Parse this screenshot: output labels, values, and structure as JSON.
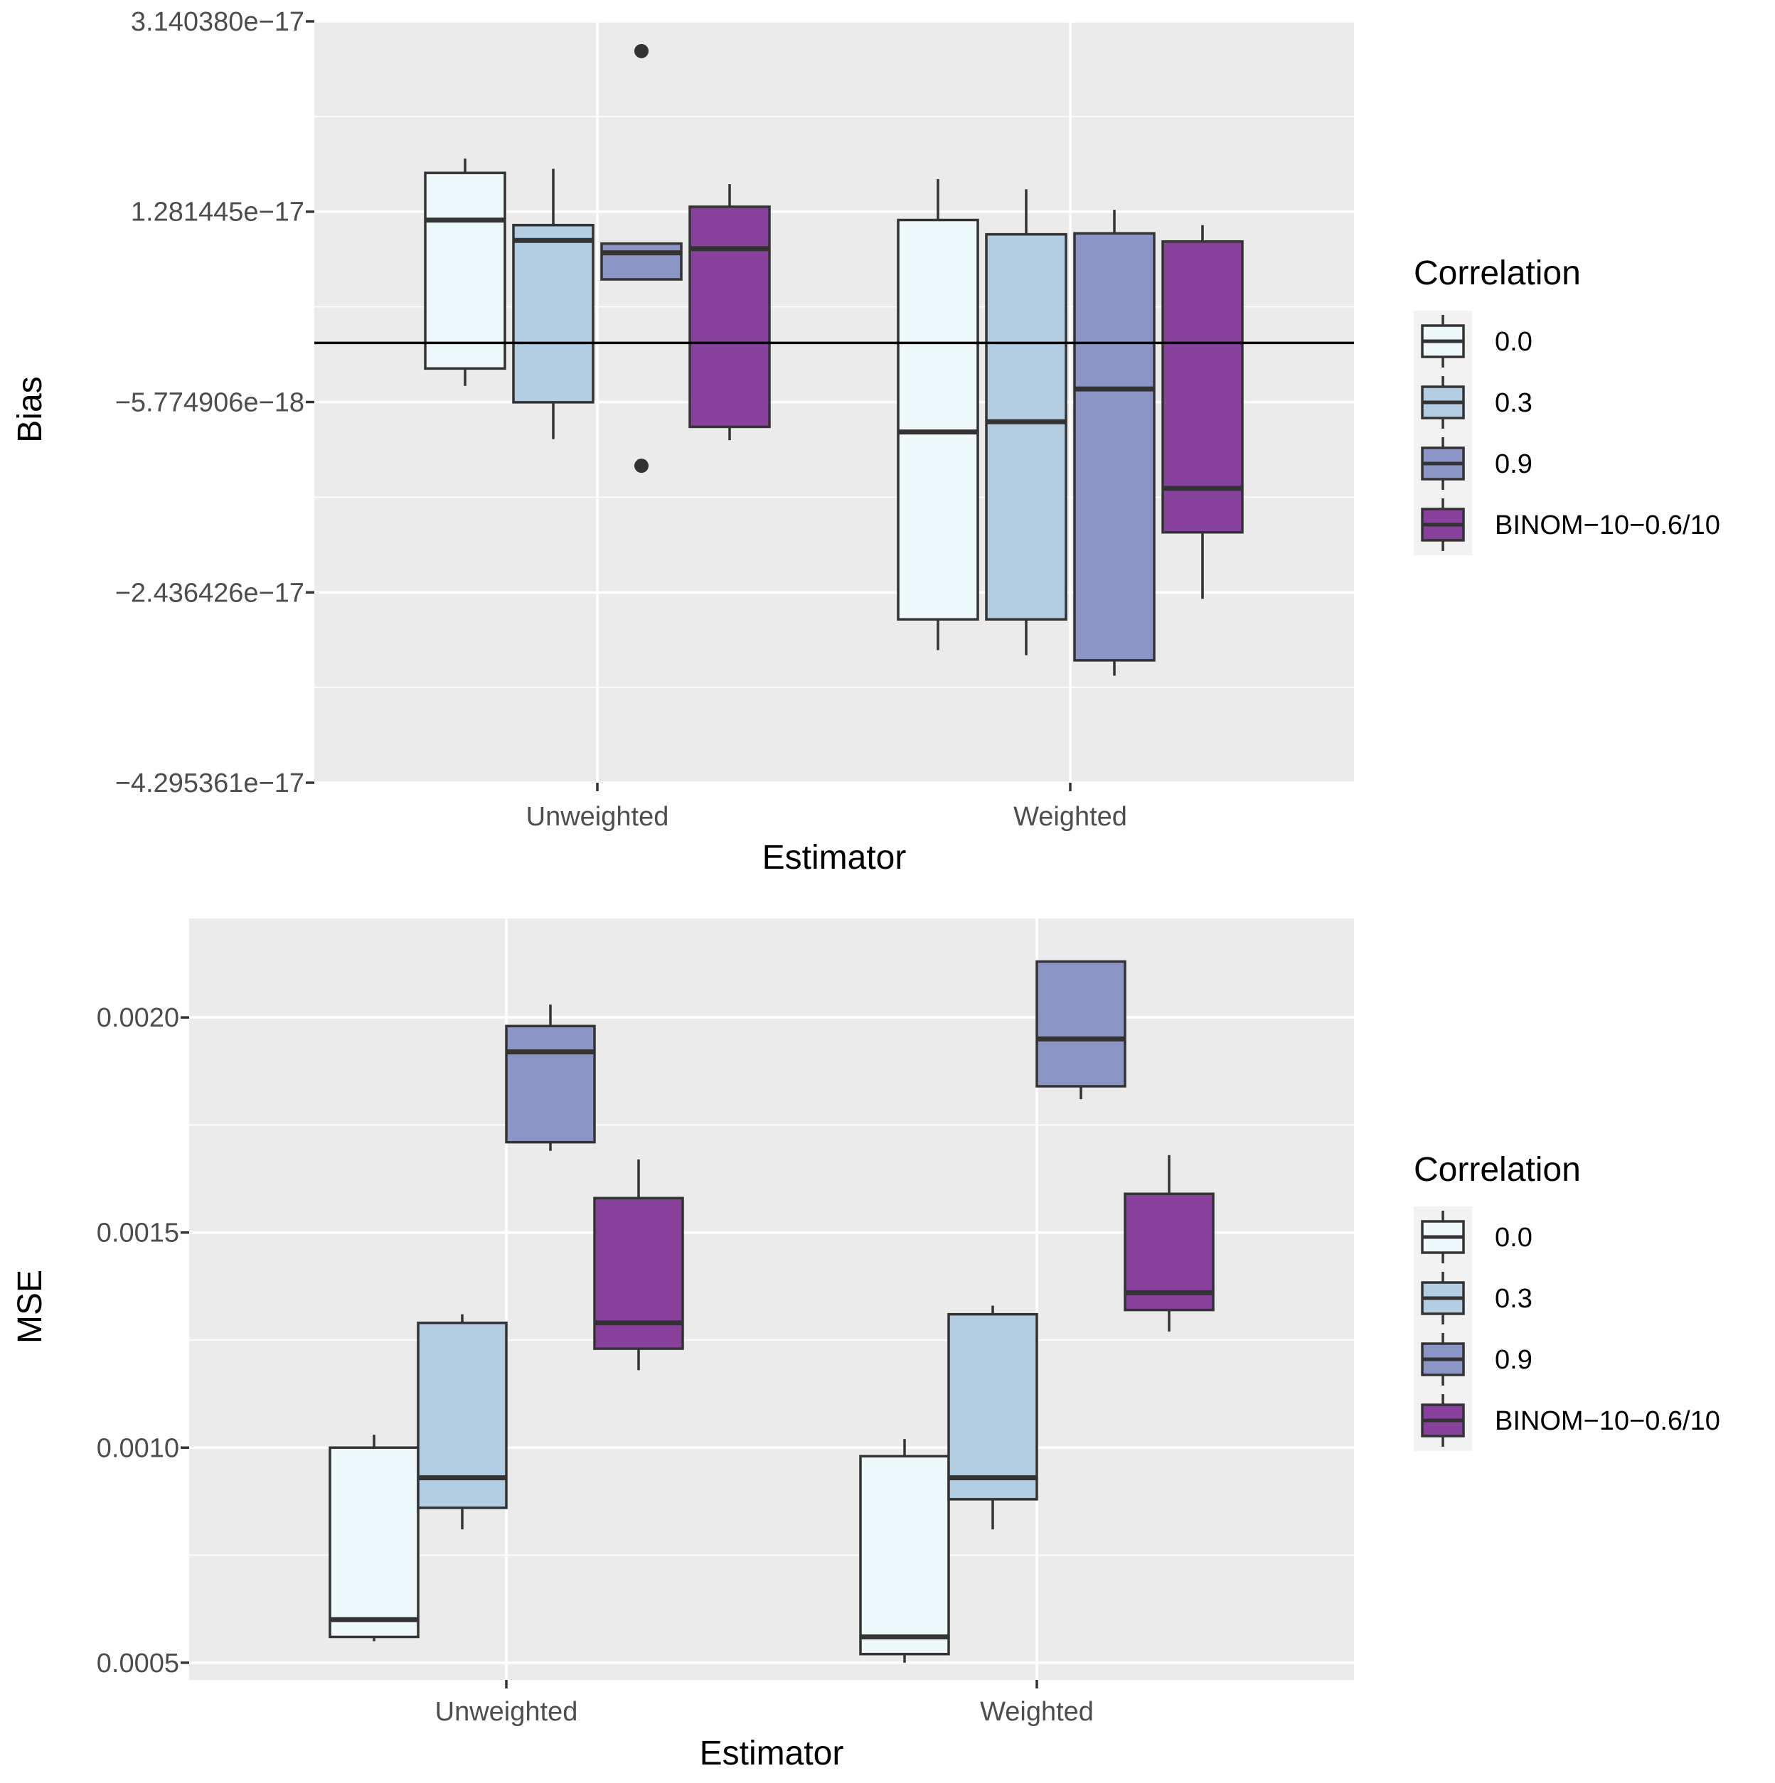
{
  "chart_data": [
    {
      "type": "boxplot",
      "ylabel": "Bias",
      "xlabel": "Estimator",
      "categories": [
        "Unweighted",
        "Weighted"
      ],
      "ylim": [
        -4.295361e-17,
        3.14038e-17
      ],
      "yticks": [
        3.14038e-17,
        1.281445e-17,
        -5.774906e-18,
        -2.436426e-17,
        -4.295361e-17
      ],
      "ytick_labels": [
        "3.140380e−17",
        "1.281445e−17",
        "−5.774906e−18",
        "−2.436426e−17",
        "−4.295361e−17"
      ],
      "hline": 0,
      "legend": {
        "title": "Correlation",
        "entries": [
          "0.0",
          "0.3",
          "0.9",
          "BINOM−10−0.6/10"
        ],
        "colors": [
          "#edf8fb",
          "#b3cde3",
          "#8c96c6",
          "#88419d"
        ]
      },
      "series": [
        {
          "name": "0.0",
          "color": "#edf8fb",
          "boxes": [
            {
              "category": "Unweighted",
              "lower_whisker": -4.2e-18,
              "q1": -2.5e-18,
              "median": 1.2e-17,
              "q3": 1.66e-17,
              "upper_whisker": 1.8e-17,
              "outliers": []
            },
            {
              "category": "Weighted",
              "lower_whisker": -3e-17,
              "q1": -2.7e-17,
              "median": -8.7e-18,
              "q3": 1.2e-17,
              "upper_whisker": 1.6e-17,
              "outliers": []
            }
          ]
        },
        {
          "name": "0.3",
          "color": "#b3cde3",
          "boxes": [
            {
              "category": "Unweighted",
              "lower_whisker": -9.4e-18,
              "q1": -5.8e-18,
              "median": 1e-17,
              "q3": 1.15e-17,
              "upper_whisker": 1.7e-17,
              "outliers": []
            },
            {
              "category": "Weighted",
              "lower_whisker": -3.05e-17,
              "q1": -2.7e-17,
              "median": -7.7e-18,
              "q3": 1.06e-17,
              "upper_whisker": 1.5e-17,
              "outliers": []
            }
          ]
        },
        {
          "name": "0.9",
          "color": "#8c96c6",
          "boxes": [
            {
              "category": "Unweighted",
              "lower_whisker": 6.2e-18,
              "q1": 6.2e-18,
              "median": 8.8e-18,
              "q3": 9.7e-18,
              "upper_whisker": 9.7e-18,
              "outliers": [
                2.85e-17,
                -1.2e-17
              ]
            },
            {
              "category": "Weighted",
              "lower_whisker": -3.25e-17,
              "q1": -3.1e-17,
              "median": -4.5e-18,
              "q3": 1.07e-17,
              "upper_whisker": 1.3e-17,
              "outliers": []
            }
          ]
        },
        {
          "name": "BINOM−10−0.6/10",
          "color": "#88419d",
          "boxes": [
            {
              "category": "Unweighted",
              "lower_whisker": -9.5e-18,
              "q1": -8.2e-18,
              "median": 9.2e-18,
              "q3": 1.33e-17,
              "upper_whisker": 1.55e-17,
              "outliers": []
            },
            {
              "category": "Weighted",
              "lower_whisker": -2.5e-17,
              "q1": -1.85e-17,
              "median": -1.42e-17,
              "q3": 9.9e-18,
              "upper_whisker": 1.15e-17,
              "outliers": []
            }
          ]
        }
      ]
    },
    {
      "type": "boxplot",
      "ylabel": "MSE",
      "xlabel": "Estimator",
      "categories": [
        "Unweighted",
        "Weighted"
      ],
      "ylim": [
        0.00046,
        0.00223
      ],
      "yticks": [
        0.002,
        0.0015,
        0.001,
        0.0005
      ],
      "ytick_labels": [
        "0.0020",
        "0.0015",
        "0.0010",
        "0.0005"
      ],
      "legend": {
        "title": "Correlation",
        "entries": [
          "0.0",
          "0.3",
          "0.9",
          "BINOM−10−0.6/10"
        ],
        "colors": [
          "#edf8fb",
          "#b3cde3",
          "#8c96c6",
          "#88419d"
        ]
      },
      "series": [
        {
          "name": "0.0",
          "color": "#edf8fb",
          "boxes": [
            {
              "category": "Unweighted",
              "lower_whisker": 0.00055,
              "q1": 0.00056,
              "median": 0.0006,
              "q3": 0.001,
              "upper_whisker": 0.00103,
              "outliers": []
            },
            {
              "category": "Weighted",
              "lower_whisker": 0.0005,
              "q1": 0.00052,
              "median": 0.00056,
              "q3": 0.00098,
              "upper_whisker": 0.00102,
              "outliers": []
            }
          ]
        },
        {
          "name": "0.3",
          "color": "#b3cde3",
          "boxes": [
            {
              "category": "Unweighted",
              "lower_whisker": 0.00081,
              "q1": 0.00086,
              "median": 0.00093,
              "q3": 0.00129,
              "upper_whisker": 0.00131,
              "outliers": []
            },
            {
              "category": "Weighted",
              "lower_whisker": 0.00081,
              "q1": 0.00088,
              "median": 0.00093,
              "q3": 0.00131,
              "upper_whisker": 0.00133,
              "outliers": []
            }
          ]
        },
        {
          "name": "0.9",
          "color": "#8c96c6",
          "boxes": [
            {
              "category": "Unweighted",
              "lower_whisker": 0.00169,
              "q1": 0.00171,
              "median": 0.00192,
              "q3": 0.00198,
              "upper_whisker": 0.00203,
              "outliers": []
            },
            {
              "category": "Weighted",
              "lower_whisker": 0.00181,
              "q1": 0.00184,
              "median": 0.00195,
              "q3": 0.00213,
              "upper_whisker": 0.00213,
              "outliers": []
            }
          ]
        },
        {
          "name": "BINOM−10−0.6/10",
          "color": "#88419d",
          "boxes": [
            {
              "category": "Unweighted",
              "lower_whisker": 0.00118,
              "q1": 0.00123,
              "median": 0.00129,
              "q3": 0.00158,
              "upper_whisker": 0.00167,
              "outliers": []
            },
            {
              "category": "Weighted",
              "lower_whisker": 0.00127,
              "q1": 0.00132,
              "median": 0.00136,
              "q3": 0.00159,
              "upper_whisker": 0.00168,
              "outliers": []
            }
          ]
        }
      ]
    }
  ]
}
